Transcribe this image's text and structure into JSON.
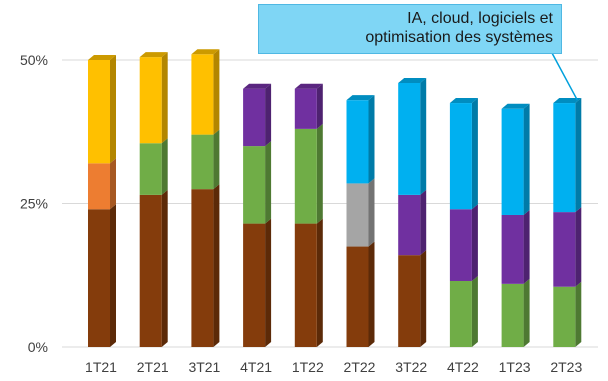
{
  "chart_data": {
    "type": "bar",
    "stacked": true,
    "three_d": true,
    "categories": [
      "1T21",
      "2T21",
      "3T21",
      "4T21",
      "1T22",
      "2T22",
      "3T22",
      "4T22",
      "1T23",
      "2T23"
    ],
    "ylim": [
      0,
      50
    ],
    "yticks": [
      0,
      25,
      50
    ],
    "ytick_labels": [
      "0%",
      "25%",
      "50%"
    ],
    "grid": "horizontal",
    "series": [
      {
        "color": "#843c0c",
        "values": [
          24,
          26.5,
          27.5,
          21.5,
          21.5,
          17.5,
          16,
          0,
          0,
          0
        ]
      },
      {
        "color": "#70ad47",
        "values": [
          0,
          9,
          9.5,
          13.5,
          16.5,
          0,
          0,
          11.5,
          11,
          10.5
        ]
      },
      {
        "color": "#a5a5a5",
        "values": [
          0,
          0,
          0,
          0,
          0,
          11,
          0,
          0,
          0,
          0
        ]
      },
      {
        "color": "#ed7d31",
        "values": [
          8,
          0,
          0,
          0,
          0,
          0,
          0,
          0,
          0,
          0
        ]
      },
      {
        "color": "#7030a0",
        "values": [
          0,
          0,
          0,
          10,
          7,
          0,
          10.5,
          12.5,
          12,
          13
        ]
      },
      {
        "color": "#ffc000",
        "values": [
          18,
          15,
          14,
          0,
          0,
          0,
          0,
          0,
          0,
          0
        ]
      },
      {
        "color": "#00b0f0",
        "values": [
          0,
          0,
          0,
          0,
          0,
          14.5,
          19.5,
          18.5,
          18.5,
          19
        ]
      }
    ],
    "annotation": {
      "lines": [
        "IA, cloud, logiciels et",
        "optimisation des systèmes"
      ],
      "fill": "#7fd6f5",
      "target_category": "2T23"
    }
  }
}
